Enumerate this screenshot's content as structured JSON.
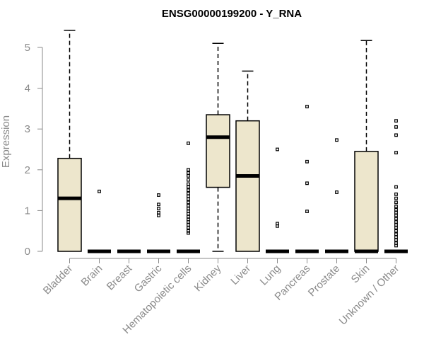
{
  "chart_data": {
    "type": "boxplot",
    "title": "ENSG00000199200 - Y_RNA",
    "xlabel": "",
    "ylabel": "Expression",
    "ylim": [
      0,
      5.5
    ],
    "yticks": [
      0,
      1,
      2,
      3,
      4,
      5
    ],
    "categories": [
      "Bladder",
      "Brain",
      "Breast",
      "Gastric",
      "Hematopoietic cells",
      "Kidney",
      "Liver",
      "Lung",
      "Pancreas",
      "Prostate",
      "Skin",
      "Unknown / Other"
    ],
    "boxes": [
      {
        "name": "Bladder",
        "min": 0,
        "q1": 0,
        "median": 1.3,
        "q3": 2.28,
        "max": 5.42,
        "outliers": []
      },
      {
        "name": "Brain",
        "min": 0,
        "q1": 0,
        "median": 0,
        "q3": 0,
        "max": 0,
        "outliers": [
          1.47
        ]
      },
      {
        "name": "Breast",
        "min": 0,
        "q1": 0,
        "median": 0,
        "q3": 0,
        "max": 0,
        "outliers": []
      },
      {
        "name": "Gastric",
        "min": 0,
        "q1": 0,
        "median": 0,
        "q3": 0,
        "max": 0,
        "outliers": [
          1.38,
          1.15,
          1.05,
          0.95,
          0.88
        ]
      },
      {
        "name": "Hematopoietic cells",
        "min": 0,
        "q1": 0,
        "median": 0,
        "q3": 0,
        "max": 0,
        "outliers": [
          2.65,
          2.0,
          1.92,
          1.85,
          1.75,
          1.65,
          1.58,
          1.5,
          1.42,
          1.35,
          1.28,
          1.2,
          1.12,
          1.05,
          0.98,
          0.92,
          0.85,
          0.78,
          0.72,
          0.65,
          0.58,
          0.5,
          0.45
        ]
      },
      {
        "name": "Kidney",
        "min": 0,
        "q1": 1.57,
        "median": 2.8,
        "q3": 3.35,
        "max": 5.1,
        "outliers": []
      },
      {
        "name": "Liver",
        "min": 0,
        "q1": 0,
        "median": 1.85,
        "q3": 3.2,
        "max": 4.42,
        "outliers": []
      },
      {
        "name": "Lung",
        "min": 0,
        "q1": 0,
        "median": 0,
        "q3": 0,
        "max": 0,
        "outliers": [
          2.5,
          0.68,
          0.62
        ]
      },
      {
        "name": "Pancreas",
        "min": 0,
        "q1": 0,
        "median": 0,
        "q3": 0,
        "max": 0,
        "outliers": [
          3.55,
          2.2,
          1.67,
          0.98
        ]
      },
      {
        "name": "Prostate",
        "min": 0,
        "q1": 0,
        "median": 0,
        "q3": 0,
        "max": 0,
        "outliers": [
          2.73,
          1.45
        ]
      },
      {
        "name": "Skin",
        "min": 0,
        "q1": 0,
        "median": 0,
        "q3": 2.45,
        "max": 5.17,
        "outliers": []
      },
      {
        "name": "Unknown / Other",
        "min": 0,
        "q1": 0,
        "median": 0,
        "q3": 0,
        "max": 0,
        "outliers": [
          3.2,
          3.05,
          2.85,
          2.42,
          1.58,
          1.4,
          1.3,
          1.2,
          1.1,
          1.02,
          0.95,
          0.88,
          0.8,
          0.72,
          0.65,
          0.58,
          0.5,
          0.42,
          0.35,
          0.28,
          0.2,
          0.14
        ]
      }
    ]
  }
}
